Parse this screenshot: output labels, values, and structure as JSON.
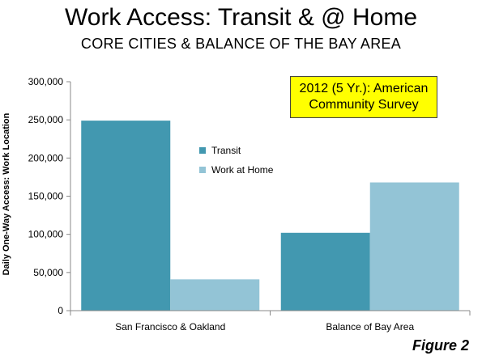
{
  "title": "Work Access: Transit & @ Home",
  "subtitle": "CORE CITIES & BALANCE OF THE BAY AREA",
  "note": {
    "line1": "2012 (5 Yr.): American",
    "line2": "Community Survey"
  },
  "figure_label": "Figure 2",
  "colors": {
    "transit": "#4298b0",
    "work_at_home": "#93c4d6",
    "note_background": "#ffff00"
  },
  "chart_data": {
    "type": "bar",
    "categories": [
      "San Francisco & Oakland",
      "Balance of Bay Area"
    ],
    "series": [
      {
        "name": "Transit",
        "values": [
          249000,
          102000
        ]
      },
      {
        "name": "Work at Home",
        "values": [
          41000,
          168000
        ]
      }
    ],
    "title": "Work Access: Transit & @ Home",
    "subtitle": "CORE CITIES & BALANCE OF THE BAY AREA",
    "xlabel": "",
    "ylabel": "Daily One-Way Access: Work Location",
    "ylim": [
      0,
      300000
    ],
    "yticks": [
      0,
      50000,
      100000,
      150000,
      200000,
      250000,
      300000
    ],
    "ytick_labels": [
      "0",
      "50,000",
      "100,000",
      "150,000",
      "200,000",
      "250,000",
      "300,000"
    ],
    "legend_position": "inside-center",
    "grid": false
  }
}
